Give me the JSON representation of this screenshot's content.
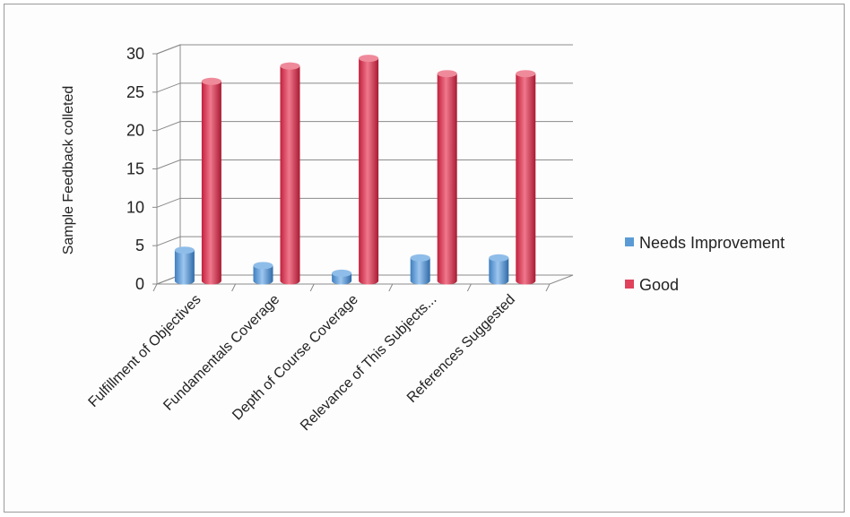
{
  "chart_data": {
    "type": "bar",
    "style": "3d-clustered-cylinder",
    "categories": [
      "Fulfillment of Objectives",
      "Fundamentals Coverage",
      "Depth of Course Coverage",
      "Relevance of This Subjects...",
      "References Suggested"
    ],
    "series": [
      {
        "name": "Needs Improvement",
        "values": [
          4,
          2,
          1,
          3,
          3
        ],
        "color": "#5b9bd5"
      },
      {
        "name": "Good",
        "values": [
          26,
          28,
          29,
          27,
          27
        ],
        "color": "#e0425c"
      }
    ],
    "ylabel": "Sample Feedback colleted",
    "yticks": [
      "0",
      "5",
      "10",
      "15",
      "20",
      "25",
      "30"
    ],
    "ylim": [
      0,
      30
    ],
    "grid": true,
    "legend_position": "right"
  }
}
